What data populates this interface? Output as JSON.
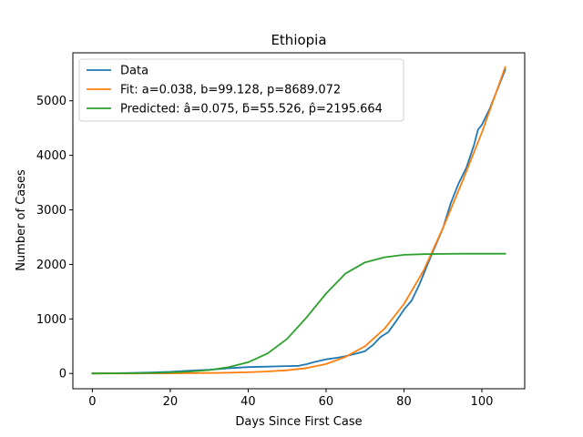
{
  "chart_data": {
    "type": "line",
    "title": "Ethiopia",
    "xlabel": "Days Since First Case",
    "ylabel": "Number of Cases",
    "xlim": [
      -5,
      111
    ],
    "ylim": [
      -280,
      5880
    ],
    "xticks": [
      0,
      20,
      40,
      60,
      80,
      100
    ],
    "yticks": [
      0,
      1000,
      2000,
      3000,
      4000,
      5000
    ],
    "grid": false,
    "legend_position": "upper-left",
    "series": [
      {
        "name": "Data",
        "color": "#1f77b4",
        "x": [
          0,
          5,
          10,
          15,
          20,
          25,
          30,
          35,
          40,
          45,
          50,
          53,
          55,
          57,
          60,
          63,
          65,
          68,
          70,
          72,
          74,
          76,
          78,
          80,
          82,
          84,
          86,
          88,
          90,
          92,
          94,
          96,
          98,
          99,
          100,
          102,
          104,
          106
        ],
        "y": [
          1,
          4,
          9,
          18,
          30,
          52,
          68,
          95,
          117,
          126,
          136,
          140,
          170,
          210,
          260,
          290,
          317,
          370,
          410,
          520,
          670,
          760,
          960,
          1170,
          1340,
          1640,
          1990,
          2330,
          2660,
          3120,
          3480,
          3770,
          4190,
          4470,
          4560,
          4850,
          5210,
          5570
        ]
      },
      {
        "name": "Fit: a=0.038, b=99.128, p=8689.072",
        "color": "#ff7f0e",
        "x": [
          0,
          5,
          10,
          15,
          20,
          25,
          30,
          35,
          40,
          45,
          50,
          55,
          60,
          65,
          70,
          75,
          80,
          85,
          90,
          95,
          100,
          106
        ],
        "y": [
          0.2,
          0.4,
          0.5,
          1.6,
          2.6,
          5,
          8,
          13,
          22,
          37,
          59,
          99,
          173,
          305,
          500,
          820,
          1272,
          1881,
          2665,
          3525,
          4418,
          5620
        ]
      },
      {
        "name": "Predicted: â=0.075, ƃ=55.526, p̂=2195.664",
        "color": "#2ca02c",
        "x": [
          0,
          5,
          10,
          15,
          20,
          25,
          30,
          35,
          40,
          45,
          50,
          55,
          60,
          65,
          70,
          75,
          80,
          85,
          90,
          95,
          100,
          106
        ],
        "y": [
          0.2,
          2.4,
          4.9,
          9.5,
          19,
          35,
          62,
          115,
          206,
          368,
          634,
          1029,
          1465,
          1833,
          2037,
          2131,
          2175,
          2188,
          2193,
          2195,
          2196,
          2196
        ]
      }
    ]
  }
}
